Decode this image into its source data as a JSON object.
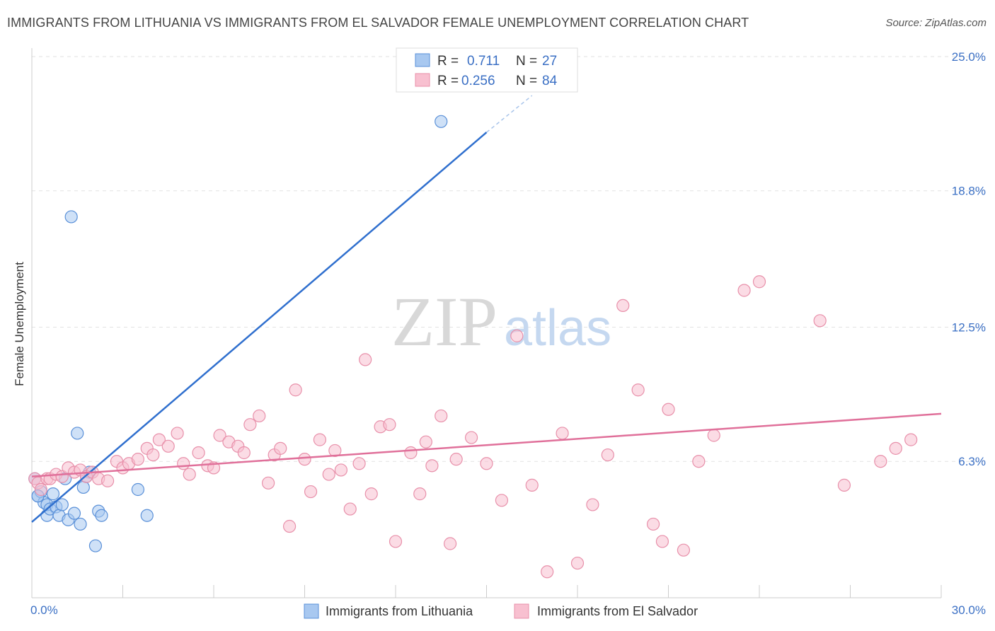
{
  "header": {
    "title": "IMMIGRANTS FROM LITHUANIA VS IMMIGRANTS FROM EL SALVADOR FEMALE UNEMPLOYMENT CORRELATION CHART",
    "source": "Source: ZipAtlas.com"
  },
  "watermark": {
    "zip": "ZIP",
    "atlas": "atlas"
  },
  "legend": {
    "r_label": "R =",
    "n_label": "N =",
    "rows": [
      {
        "r": "0.711",
        "n": "27",
        "color": "#a8c8f0",
        "stroke": "#5a90d8"
      },
      {
        "r": "0.256",
        "n": "84",
        "color": "#f8c0d0",
        "stroke": "#e890aa"
      }
    ]
  },
  "chart_data": {
    "type": "scatter",
    "title": "IMMIGRANTS FROM LITHUANIA VS IMMIGRANTS FROM EL SALVADOR FEMALE UNEMPLOYMENT CORRELATION CHART",
    "xlabel": "",
    "ylabel": "Female Unemployment",
    "xlim": [
      0,
      30
    ],
    "ylim": [
      0,
      25
    ],
    "x_tick_labels": [
      "0.0%",
      "30.0%"
    ],
    "y_ticks": [
      {
        "value": 6.3,
        "label": "6.3%"
      },
      {
        "value": 12.5,
        "label": "12.5%"
      },
      {
        "value": 18.8,
        "label": "18.8%"
      },
      {
        "value": 25.0,
        "label": "25.0%"
      }
    ],
    "grid": true,
    "legend_position": "top-center",
    "series": [
      {
        "name": "Immigrants from Lithuania",
        "color": "#a8c8f0",
        "stroke": "#5a90d8",
        "line_color": "#2f6fce",
        "trend": {
          "x": [
            0,
            15
          ],
          "y": [
            3.5,
            21.5
          ]
        },
        "trend_dashed": {
          "x": [
            15,
            16.5
          ],
          "y": [
            21.5,
            23.2
          ]
        },
        "x": [
          0.1,
          0.2,
          0.3,
          0.4,
          0.5,
          0.5,
          0.6,
          0.7,
          0.8,
          0.9,
          1.0,
          1.1,
          1.2,
          1.4,
          1.5,
          1.6,
          1.7,
          1.9,
          2.1,
          2.2,
          2.3,
          3.5,
          3.8,
          13.5,
          1.3,
          1.8,
          0.2
        ],
        "y": [
          5.5,
          4.7,
          4.9,
          4.4,
          3.8,
          4.3,
          4.1,
          4.8,
          4.2,
          3.8,
          4.3,
          5.5,
          3.6,
          3.9,
          7.6,
          3.4,
          5.1,
          5.8,
          2.4,
          4.0,
          3.8,
          5.0,
          3.8,
          22.0,
          17.6,
          5.6,
          4.7
        ]
      },
      {
        "name": "Immigrants from El Salvador",
        "color": "#f8c0d0",
        "stroke": "#e890aa",
        "line_color": "#e0709a",
        "trend": {
          "x": [
            0,
            30
          ],
          "y": [
            5.6,
            8.5
          ]
        },
        "x": [
          0.1,
          0.2,
          0.3,
          0.5,
          0.6,
          0.8,
          1.0,
          1.2,
          1.4,
          1.6,
          1.8,
          2.0,
          2.2,
          2.5,
          2.8,
          3.0,
          3.2,
          3.5,
          3.8,
          4.0,
          4.2,
          4.5,
          4.8,
          5.0,
          5.2,
          5.5,
          5.8,
          6.0,
          6.2,
          6.5,
          6.8,
          7.0,
          7.2,
          7.5,
          7.8,
          8.0,
          8.2,
          8.5,
          8.7,
          9.0,
          9.2,
          9.5,
          9.8,
          10.0,
          10.2,
          10.5,
          10.8,
          11.0,
          11.2,
          11.5,
          11.8,
          12.0,
          12.5,
          12.8,
          13.0,
          13.2,
          13.5,
          13.8,
          14.0,
          14.5,
          15.0,
          15.5,
          16.0,
          16.5,
          17.0,
          17.5,
          18.0,
          18.5,
          19.0,
          19.5,
          20.0,
          20.5,
          20.8,
          21.0,
          21.5,
          22.0,
          22.5,
          23.5,
          24.0,
          26.0,
          26.8,
          28.0,
          28.5,
          29.0
        ],
        "y": [
          5.5,
          5.3,
          5.0,
          5.5,
          5.5,
          5.7,
          5.6,
          6.0,
          5.8,
          5.9,
          5.6,
          5.8,
          5.5,
          5.4,
          6.3,
          6.0,
          6.2,
          6.4,
          6.9,
          6.6,
          7.3,
          7.0,
          7.6,
          6.2,
          5.7,
          6.7,
          6.1,
          6.0,
          7.5,
          7.2,
          7.0,
          6.7,
          8.0,
          8.4,
          5.3,
          6.6,
          6.9,
          3.3,
          9.6,
          6.4,
          4.9,
          7.3,
          5.7,
          6.8,
          5.9,
          4.1,
          6.2,
          11.0,
          4.8,
          7.9,
          8.0,
          2.6,
          6.7,
          4.8,
          7.2,
          6.1,
          8.4,
          2.5,
          6.4,
          7.4,
          6.2,
          4.5,
          12.1,
          5.2,
          1.2,
          7.6,
          1.6,
          4.3,
          6.6,
          13.5,
          9.6,
          3.4,
          2.6,
          8.7,
          2.2,
          6.3,
          7.5,
          14.2,
          14.6,
          12.8,
          5.2,
          6.3,
          6.9,
          7.3
        ]
      }
    ]
  }
}
